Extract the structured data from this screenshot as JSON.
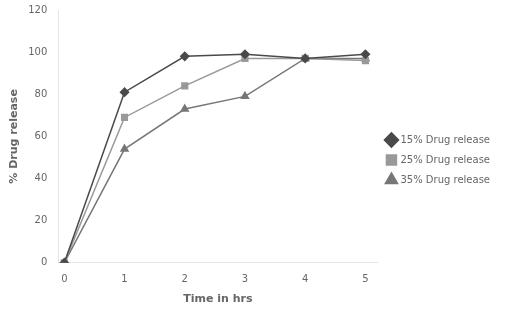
{
  "chart_data": {
    "type": "line",
    "x": [
      0,
      1,
      2,
      3,
      4,
      5
    ],
    "series": [
      {
        "name": "15% Drug release",
        "color": "#4a4a4a",
        "marker": "diamond",
        "values": [
          0,
          81,
          98,
          99,
          97,
          99
        ]
      },
      {
        "name": "25% Drug release",
        "color": "#999999",
        "marker": "square",
        "values": [
          0,
          69,
          84,
          97,
          97,
          96
        ]
      },
      {
        "name": "35% Drug release",
        "color": "#777777",
        "marker": "triangle",
        "values": [
          0,
          54,
          73,
          79,
          97,
          97
        ]
      }
    ],
    "xlabel": "Time in hrs",
    "ylabel": "% Drug release",
    "xlim": [
      -0.1,
      5.2
    ],
    "ylim": [
      0,
      120
    ],
    "xticks": [
      0,
      1,
      2,
      3,
      4,
      5
    ],
    "yticks": [
      0,
      20,
      40,
      60,
      80,
      100,
      120
    ],
    "grid": false,
    "legend": "right"
  }
}
